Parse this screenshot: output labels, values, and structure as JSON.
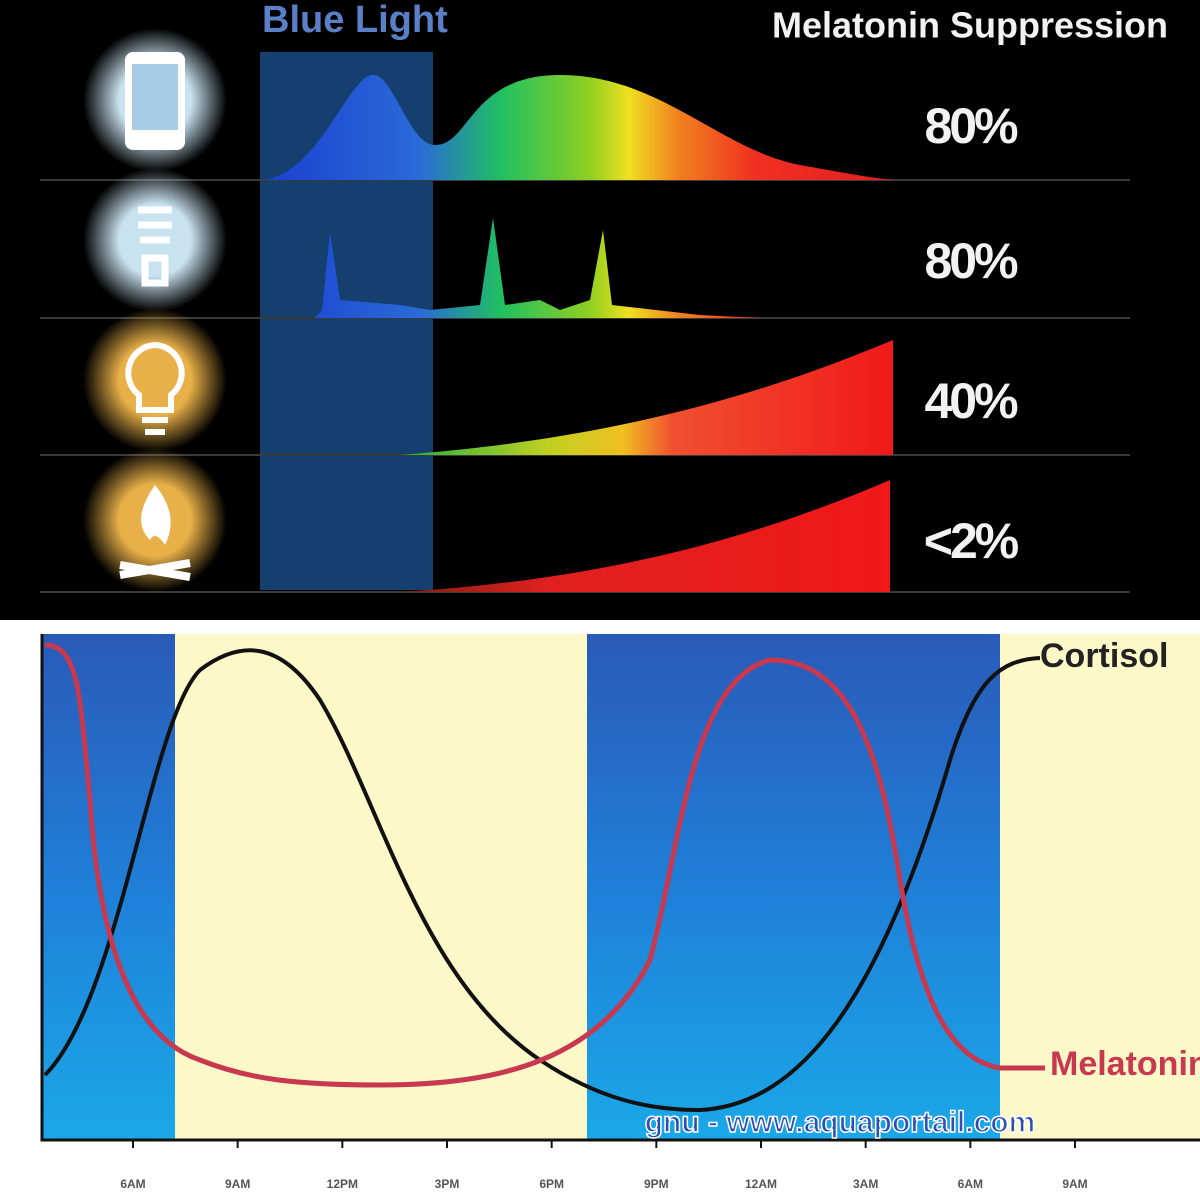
{
  "top": {
    "heading_left": "Blue Light",
    "heading_right": "Melatonin Suppression",
    "rows": [
      "80%",
      "80%",
      "40%",
      "<2%"
    ]
  },
  "bottom": {
    "x_labels": [
      "6AM",
      "9AM",
      "12PM",
      "3PM",
      "6PM",
      "9PM",
      "12AM",
      "3AM",
      "6AM",
      "9AM"
    ],
    "curve_labels": [
      "Cortisol",
      "Melatonin"
    ],
    "watermark": "gnu - www.aquaportail.com"
  }
}
